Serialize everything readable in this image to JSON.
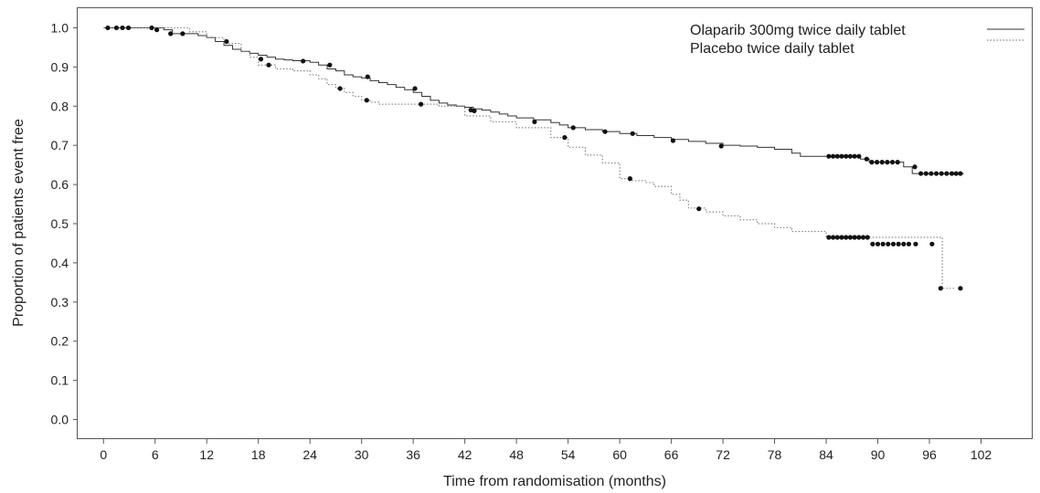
{
  "chart_data": {
    "type": "line",
    "title": "",
    "xlabel": "Time from randomisation (months)",
    "ylabel": "Proportion of patients event free",
    "xlim": [
      -3,
      108
    ],
    "ylim": [
      -0.05,
      1.05
    ],
    "xticks": [
      0,
      6,
      12,
      18,
      24,
      30,
      36,
      42,
      48,
      54,
      60,
      66,
      72,
      78,
      84,
      90,
      96,
      102
    ],
    "xtick_labels": [
      "0",
      "6",
      "12",
      "18",
      "24",
      "30",
      "36",
      "42",
      "48",
      "54",
      "60",
      "66",
      "72",
      "78",
      "84",
      "90",
      "96",
      "102"
    ],
    "yticks": [
      0.0,
      0.1,
      0.2,
      0.3,
      0.4,
      0.5,
      0.6,
      0.7,
      0.8,
      0.9,
      1.0
    ],
    "ytick_labels": [
      "0.0",
      "0.1",
      "0.2",
      "0.3",
      "0.4",
      "0.5",
      "0.6",
      "0.7",
      "0.8",
      "0.9",
      "1.0"
    ],
    "grid": false,
    "legend_position": "top-right",
    "series": [
      {
        "name": "Olaparib 300mg twice daily tablet",
        "line_style": "solid",
        "color": "#333333",
        "x": [
          0,
          7,
          8,
          11,
          12,
          13,
          14,
          15,
          16,
          17,
          18,
          19,
          20,
          21,
          22,
          24,
          25,
          26,
          27,
          28,
          29,
          30,
          31,
          32,
          33,
          34,
          35,
          36,
          37,
          38,
          39,
          40,
          41,
          42,
          43,
          44,
          45,
          46,
          47,
          48,
          50,
          52,
          53,
          54,
          56,
          58,
          60,
          62,
          64,
          66,
          68,
          70,
          72,
          74,
          76,
          78,
          80,
          81,
          84,
          88,
          89,
          93,
          94,
          100
        ],
        "y": [
          1.0,
          0.995,
          0.985,
          0.98,
          0.975,
          0.965,
          0.955,
          0.945,
          0.94,
          0.935,
          0.93,
          0.925,
          0.92,
          0.918,
          0.916,
          0.912,
          0.905,
          0.895,
          0.89,
          0.88,
          0.875,
          0.872,
          0.865,
          0.86,
          0.855,
          0.848,
          0.842,
          0.835,
          0.825,
          0.815,
          0.808,
          0.803,
          0.8,
          0.797,
          0.793,
          0.79,
          0.785,
          0.78,
          0.775,
          0.77,
          0.765,
          0.758,
          0.752,
          0.745,
          0.74,
          0.735,
          0.73,
          0.725,
          0.72,
          0.715,
          0.71,
          0.705,
          0.7,
          0.698,
          0.695,
          0.69,
          0.68,
          0.672,
          0.672,
          0.665,
          0.657,
          0.645,
          0.628,
          0.628
        ],
        "censor_x": [
          0.5,
          1.5,
          2.2,
          2.9,
          5.6,
          6.2,
          7.8,
          9.2,
          14.3,
          23.2,
          26.3,
          30.7,
          36.2,
          43.1,
          50.1,
          54.6,
          58.3,
          61.5,
          66.2,
          71.8,
          84.3,
          84.8,
          85.3,
          85.8,
          86.3,
          86.8,
          87.3,
          87.8,
          88.7,
          89.3,
          89.9,
          90.5,
          91.1,
          91.7,
          92.3,
          94.3,
          95.0,
          95.6,
          96.2,
          96.8,
          97.4,
          98.0,
          98.6,
          99.1,
          99.6
        ],
        "censor_y": [
          1.0,
          1.0,
          1.0,
          1.0,
          1.0,
          0.995,
          0.985,
          0.985,
          0.965,
          0.915,
          0.905,
          0.875,
          0.845,
          0.788,
          0.76,
          0.745,
          0.735,
          0.73,
          0.712,
          0.698,
          0.672,
          0.672,
          0.672,
          0.672,
          0.672,
          0.672,
          0.672,
          0.672,
          0.665,
          0.657,
          0.657,
          0.657,
          0.657,
          0.657,
          0.657,
          0.645,
          0.628,
          0.628,
          0.628,
          0.628,
          0.628,
          0.628,
          0.628,
          0.628,
          0.628
        ]
      },
      {
        "name": "Placebo twice daily tablet",
        "line_style": "dotted",
        "color": "#888888",
        "x": [
          0,
          10,
          12,
          14,
          16,
          17,
          18,
          20,
          22,
          24,
          25,
          26,
          27,
          28,
          29,
          30,
          31,
          32,
          36,
          39,
          42,
          45,
          48,
          52,
          54,
          56,
          58,
          60,
          61,
          63,
          64,
          66,
          67,
          68,
          70,
          72,
          74,
          76,
          78,
          80,
          84,
          97.5,
          99
        ],
        "y": [
          1.0,
          0.99,
          0.975,
          0.96,
          0.94,
          0.925,
          0.905,
          0.895,
          0.89,
          0.88,
          0.87,
          0.855,
          0.845,
          0.835,
          0.825,
          0.815,
          0.81,
          0.805,
          0.805,
          0.8,
          0.775,
          0.76,
          0.745,
          0.72,
          0.695,
          0.675,
          0.655,
          0.615,
          0.61,
          0.605,
          0.595,
          0.575,
          0.56,
          0.54,
          0.53,
          0.52,
          0.51,
          0.5,
          0.49,
          0.48,
          0.465,
          0.335,
          0.335
        ],
        "censor_x": [
          18.3,
          19.2,
          27.5,
          30.6,
          36.9,
          42.7,
          53.6,
          61.2,
          69.2,
          84.3,
          84.8,
          85.3,
          85.8,
          86.3,
          86.8,
          87.3,
          87.8,
          88.3,
          88.8,
          89.4,
          90.0,
          90.6,
          91.2,
          91.8,
          92.4,
          93.0,
          93.6,
          94.4,
          96.3,
          97.3,
          99.6
        ],
        "censor_y": [
          0.92,
          0.905,
          0.845,
          0.815,
          0.805,
          0.79,
          0.72,
          0.615,
          0.538,
          0.465,
          0.465,
          0.465,
          0.465,
          0.465,
          0.465,
          0.465,
          0.465,
          0.465,
          0.465,
          0.448,
          0.448,
          0.448,
          0.448,
          0.448,
          0.448,
          0.448,
          0.448,
          0.448,
          0.448,
          0.335,
          0.335
        ]
      }
    ]
  }
}
